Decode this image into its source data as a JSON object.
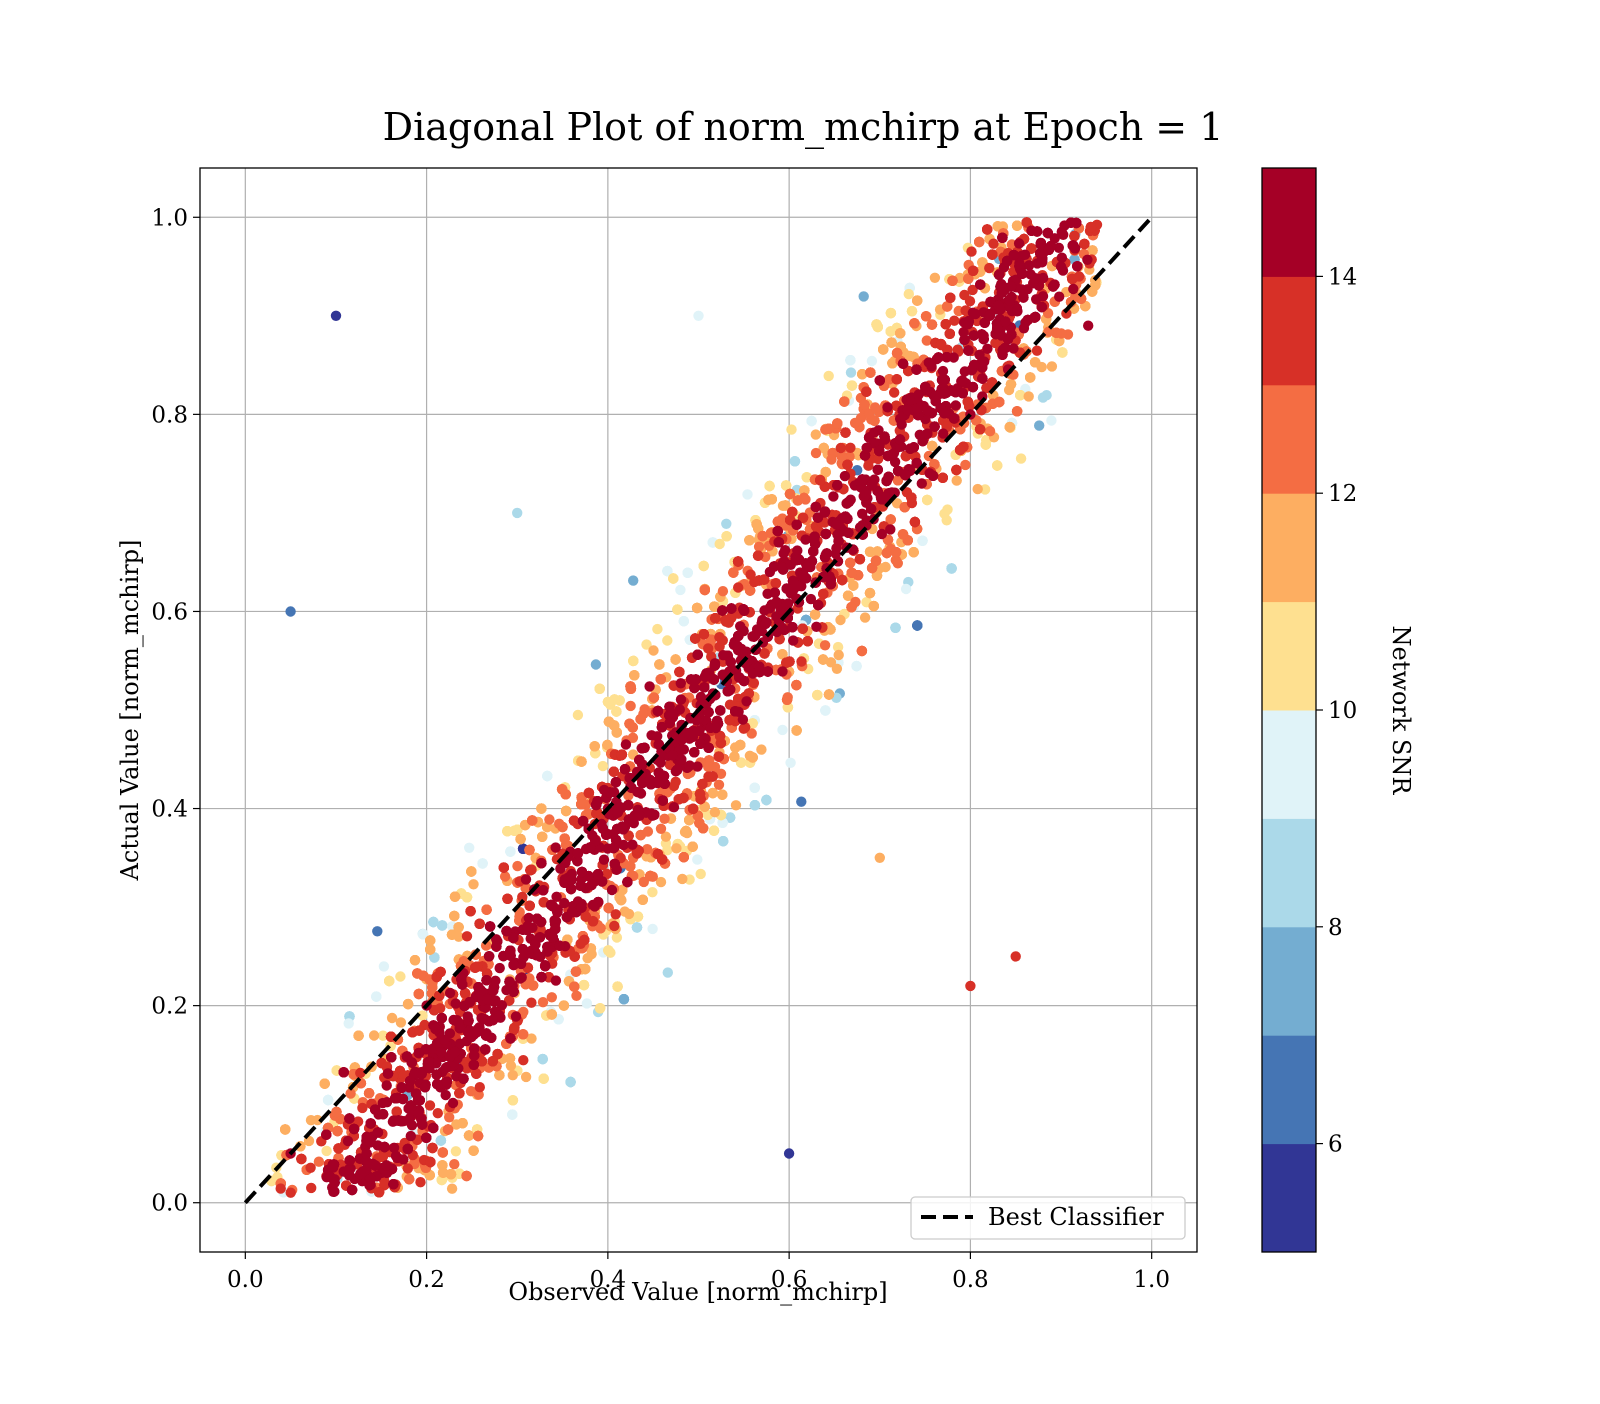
{
  "chart_data": {
    "type": "scatter",
    "title": "Diagonal Plot of norm_mchirp at Epoch = 1",
    "xlabel": "Observed Value [norm_mchirp]",
    "ylabel": "Actual Value [norm_mchirp]",
    "xlim": [
      -0.05,
      1.05
    ],
    "ylim": [
      -0.05,
      1.05
    ],
    "xticks": [
      0.0,
      0.2,
      0.4,
      0.6,
      0.8,
      1.0
    ],
    "yticks": [
      0.0,
      0.2,
      0.4,
      0.6,
      0.8,
      1.0
    ],
    "xtick_labels": [
      "0.0",
      "0.2",
      "0.4",
      "0.6",
      "0.8",
      "1.0"
    ],
    "ytick_labels": [
      "0.0",
      "0.2",
      "0.4",
      "0.6",
      "0.8",
      "1.0"
    ],
    "grid": true,
    "legend": {
      "position": "lower-right",
      "entries": [
        "Best Classifier"
      ]
    },
    "reference_line": {
      "name": "Best Classifier",
      "style": "dashed",
      "color": "#000000",
      "x": [
        0.0,
        1.0
      ],
      "y": [
        0.0,
        1.0
      ]
    },
    "colorbar": {
      "label": "Network SNR",
      "range": [
        5,
        15
      ],
      "ticks": [
        6,
        8,
        10,
        12,
        14
      ],
      "tick_labels": [
        "6",
        "8",
        "10",
        "12",
        "14"
      ],
      "colors": [
        "#313695",
        "#4575b4",
        "#74add1",
        "#abd9e9",
        "#e0f3f8",
        "#fee090",
        "#fdae61",
        "#f46d43",
        "#d73027",
        "#a50026"
      ]
    },
    "representative_points": [
      {
        "x": 0.05,
        "y": 0.05,
        "snr": 15
      },
      {
        "x": 0.2,
        "y": 0.2,
        "snr": 15
      },
      {
        "x": 0.4,
        "y": 0.4,
        "snr": 15
      },
      {
        "x": 0.6,
        "y": 0.6,
        "snr": 15
      },
      {
        "x": 0.8,
        "y": 0.8,
        "snr": 15
      },
      {
        "x": 0.9,
        "y": 0.95,
        "snr": 15
      },
      {
        "x": 0.05,
        "y": 0.6,
        "snr": 6
      },
      {
        "x": 0.1,
        "y": 0.9,
        "snr": 5
      },
      {
        "x": 0.3,
        "y": 0.7,
        "snr": 8
      },
      {
        "x": 0.5,
        "y": 0.9,
        "snr": 9
      },
      {
        "x": 0.7,
        "y": 0.35,
        "snr": 11
      },
      {
        "x": 0.85,
        "y": 0.25,
        "snr": 13
      },
      {
        "x": 0.6,
        "y": 0.05,
        "snr": 5
      },
      {
        "x": 0.8,
        "y": 0.22,
        "snr": 13
      },
      {
        "x": 0.93,
        "y": 0.89,
        "snr": 15
      }
    ]
  }
}
